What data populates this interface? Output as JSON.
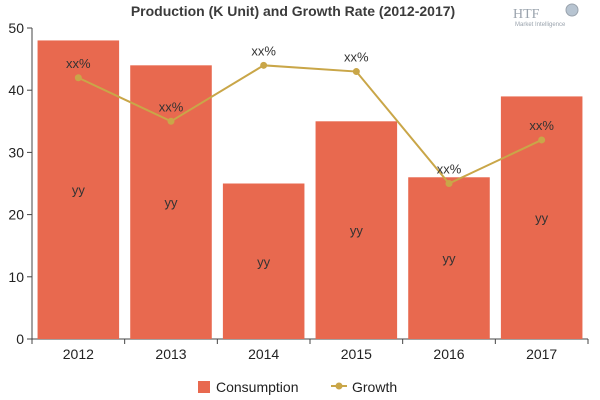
{
  "chart_data": {
    "type": "bar",
    "title": "Production (K Unit) and Growth Rate (2012-2017)",
    "categories": [
      "2012",
      "2013",
      "2014",
      "2015",
      "2016",
      "2017"
    ],
    "series": [
      {
        "name": "Consumption",
        "type": "bar",
        "values": [
          48,
          44,
          25,
          35,
          26,
          39
        ],
        "labels": [
          "yy",
          "yy",
          "yy",
          "yy",
          "yy",
          "yy"
        ],
        "color": "#e8694f"
      },
      {
        "name": "Growth",
        "type": "line",
        "values": [
          42,
          35,
          44,
          43,
          25,
          32
        ],
        "labels": [
          "xx%",
          "xx%",
          "xx%",
          "xx%",
          "xx%",
          "xx%"
        ],
        "color": "#c9a648"
      }
    ],
    "ylim": [
      0,
      50
    ],
    "yticks": [
      0,
      10,
      20,
      30,
      40,
      50
    ],
    "grid": false,
    "legend_position": "bottom"
  },
  "logo": {
    "text": "HTF",
    "subtext": "Market Intelligence"
  }
}
